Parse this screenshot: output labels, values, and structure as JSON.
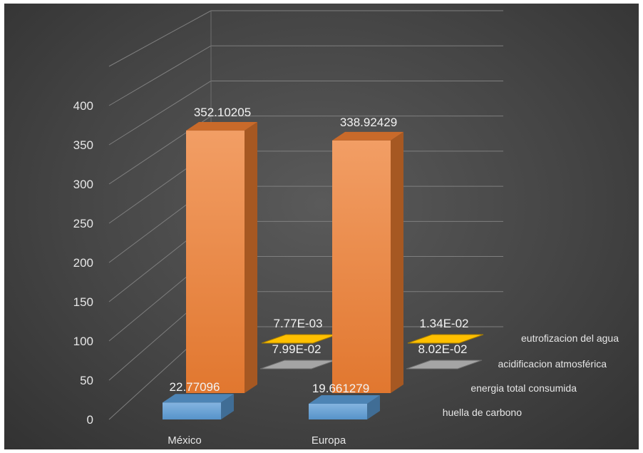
{
  "chart_data": {
    "type": "bar",
    "categories": [
      "México",
      "Europa"
    ],
    "series": [
      {
        "name": "huella de carbono",
        "values": [
          22.77096,
          19.661279
        ],
        "labels": [
          "22.77096",
          "19.661279"
        ],
        "color": "#5b9bd5"
      },
      {
        "name": "energia total consumida",
        "values": [
          352.10205,
          338.92429
        ],
        "labels": [
          "352.10205",
          "338.92429"
        ],
        "color": "#ed7d31"
      },
      {
        "name": "acidificacion atmosférica",
        "values": [
          0.0799,
          0.0802
        ],
        "labels": [
          "7.99E-02",
          "8.02E-02"
        ],
        "color": "#a5a5a5"
      },
      {
        "name": "eutrofizacion del agua",
        "values": [
          0.00777,
          0.0134
        ],
        "labels": [
          "7.77E-03",
          "1.34E-02"
        ],
        "color": "#ffc000"
      }
    ],
    "y_ticks": [
      "0",
      "50",
      "100",
      "150",
      "200",
      "250",
      "300",
      "350",
      "400"
    ],
    "ylim": [
      0,
      450
    ],
    "grid": true,
    "style": "3d-column",
    "background": "#454545"
  }
}
